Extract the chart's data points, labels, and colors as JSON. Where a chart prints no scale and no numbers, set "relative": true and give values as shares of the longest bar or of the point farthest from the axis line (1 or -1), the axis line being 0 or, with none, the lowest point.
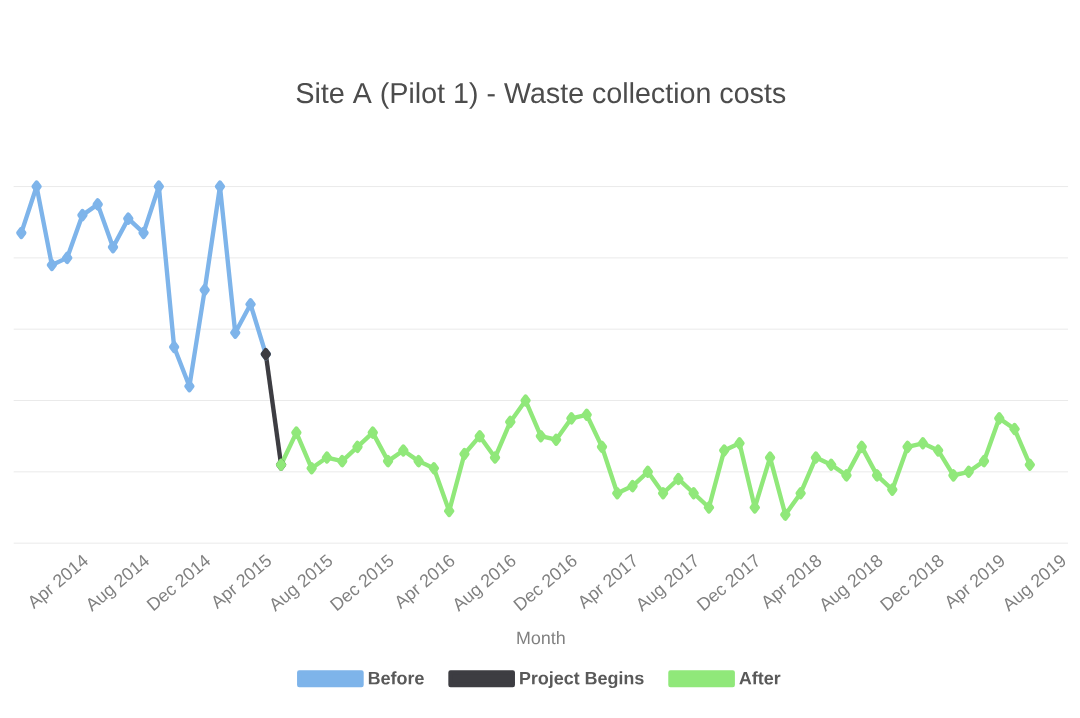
{
  "chart_data": {
    "type": "line",
    "title": "Site A (Pilot 1) - Waste collection costs",
    "xlabel": "Month",
    "relative": true,
    "grid": "y",
    "legend": "bottom",
    "marker": "diamond",
    "line_style": "solid",
    "categories": [
      null,
      null,
      null,
      null,
      "Apr 2014",
      null,
      null,
      null,
      "Aug 2014",
      null,
      null,
      null,
      "Dec 2014",
      null,
      null,
      null,
      "Apr 2015",
      null,
      null,
      null,
      "Aug 2015",
      null,
      null,
      null,
      "Dec 2015",
      null,
      null,
      null,
      "Apr 2016",
      null,
      null,
      null,
      "Aug 2016",
      null,
      null,
      null,
      "Dec 2016",
      null,
      null,
      null,
      "Apr 2017",
      null,
      null,
      null,
      "Aug 2017",
      null,
      null,
      null,
      "Dec 2017",
      null,
      null,
      null,
      "Apr 2018",
      null,
      null,
      null,
      "Aug 2018",
      null,
      null,
      null,
      "Dec 2018",
      null,
      null,
      null,
      "Apr 2019",
      null,
      null,
      null,
      "Aug 2019"
    ],
    "series": [
      {
        "name": "Before",
        "color": "#7eb4ea",
        "values": [
          0.87,
          1.0,
          0.78,
          0.8,
          0.92,
          0.95,
          0.83,
          0.91,
          0.87,
          1.0,
          0.55,
          0.44,
          0.71,
          1.0,
          0.59,
          0.67,
          0.53,
          null,
          null,
          null,
          null,
          null,
          null,
          null,
          null,
          null,
          null,
          null,
          null,
          null,
          null,
          null,
          null,
          null,
          null,
          null,
          null,
          null,
          null,
          null,
          null,
          null,
          null,
          null,
          null,
          null,
          null,
          null,
          null,
          null,
          null,
          null,
          null,
          null,
          null,
          null,
          null,
          null,
          null,
          null,
          null,
          null,
          null,
          null,
          null,
          null,
          null,
          null,
          null
        ]
      },
      {
        "name": "Project Begins",
        "color": "#3d3d42",
        "values": [
          null,
          null,
          null,
          null,
          null,
          null,
          null,
          null,
          null,
          null,
          null,
          null,
          null,
          null,
          null,
          null,
          0.53,
          0.22,
          null,
          null,
          null,
          null,
          null,
          null,
          null,
          null,
          null,
          null,
          null,
          null,
          null,
          null,
          null,
          null,
          null,
          null,
          null,
          null,
          null,
          null,
          null,
          null,
          null,
          null,
          null,
          null,
          null,
          null,
          null,
          null,
          null,
          null,
          null,
          null,
          null,
          null,
          null,
          null,
          null,
          null,
          null,
          null,
          null,
          null,
          null,
          null,
          null,
          null,
          null
        ]
      },
      {
        "name": "After",
        "color": "#90e87a",
        "values": [
          null,
          null,
          null,
          null,
          null,
          null,
          null,
          null,
          null,
          null,
          null,
          null,
          null,
          null,
          null,
          null,
          null,
          0.22,
          0.31,
          0.21,
          0.24,
          0.23,
          0.27,
          0.31,
          0.23,
          0.26,
          0.23,
          0.21,
          0.09,
          0.25,
          0.3,
          0.24,
          0.34,
          0.4,
          0.3,
          0.29,
          0.35,
          0.36,
          0.27,
          0.14,
          0.16,
          0.2,
          0.14,
          0.18,
          0.14,
          0.1,
          0.26,
          0.28,
          0.1,
          0.24,
          0.08,
          0.14,
          0.24,
          0.22,
          0.19,
          0.27,
          0.19,
          0.15,
          0.27,
          0.28,
          0.26,
          0.19,
          0.2,
          0.23,
          0.35,
          0.32,
          0.22,
          null,
          null
        ]
      }
    ]
  }
}
